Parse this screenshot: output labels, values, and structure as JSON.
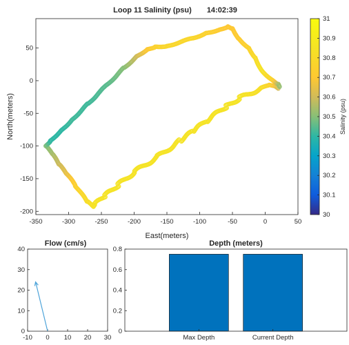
{
  "chart_data": [
    {
      "type": "scatter",
      "title": "Loop 11 Salinity (psu)",
      "time": "14:02:39",
      "xlabel": "East(meters)",
      "ylabel": "North(meters)",
      "xlim": [
        -350,
        50
      ],
      "ylim": [
        -205,
        95
      ],
      "xticks": [
        -350,
        -300,
        -250,
        -200,
        -150,
        -100,
        -50,
        0,
        50
      ],
      "yticks": [
        -200,
        -150,
        -100,
        -50,
        0,
        50
      ],
      "grid": false,
      "colorbar": {
        "label": "Salinity (psu)",
        "colormap": "parula",
        "range": [
          30,
          31
        ],
        "ticks": [
          30,
          30.1,
          30.2,
          30.3,
          30.4,
          30.5,
          30.6,
          30.7,
          30.8,
          30.9,
          31
        ]
      },
      "track": [
        {
          "x": 20,
          "y": -12,
          "salinity": 30.6
        },
        {
          "x": 13,
          "y": -8,
          "salinity": 30.65
        },
        {
          "x": 5,
          "y": -7,
          "salinity": 30.75
        },
        {
          "x": -7,
          "y": -12,
          "salinity": 30.82
        },
        {
          "x": -40,
          "y": -27,
          "salinity": 30.85
        },
        {
          "x": -60,
          "y": -40,
          "salinity": 30.85
        },
        {
          "x": -90,
          "y": -62,
          "salinity": 30.85
        },
        {
          "x": -110,
          "y": -78,
          "salinity": 30.85
        },
        {
          "x": -130,
          "y": -92,
          "salinity": 30.85
        },
        {
          "x": -165,
          "y": -117,
          "salinity": 30.85
        },
        {
          "x": -200,
          "y": -140,
          "salinity": 30.85
        },
        {
          "x": -225,
          "y": -160,
          "salinity": 30.85
        },
        {
          "x": -245,
          "y": -177,
          "salinity": 30.85
        },
        {
          "x": -260,
          "y": -190,
          "salinity": 30.85
        },
        {
          "x": -262,
          "y": -193,
          "salinity": 30.85
        },
        {
          "x": -272,
          "y": -185,
          "salinity": 30.82
        },
        {
          "x": -290,
          "y": -160,
          "salinity": 30.75
        },
        {
          "x": -305,
          "y": -140,
          "salinity": 30.65
        },
        {
          "x": -315,
          "y": -128,
          "salinity": 30.6
        },
        {
          "x": -325,
          "y": -112,
          "salinity": 30.55
        },
        {
          "x": -335,
          "y": -100,
          "salinity": 30.5
        },
        {
          "x": -328,
          "y": -92,
          "salinity": 30.4
        },
        {
          "x": -310,
          "y": -75,
          "salinity": 30.4
        },
        {
          "x": -295,
          "y": -60,
          "salinity": 30.42
        },
        {
          "x": -270,
          "y": -35,
          "salinity": 30.42
        },
        {
          "x": -240,
          "y": -5,
          "salinity": 30.45
        },
        {
          "x": -215,
          "y": 20,
          "salinity": 30.5
        },
        {
          "x": -195,
          "y": 38,
          "salinity": 30.6
        },
        {
          "x": -180,
          "y": 48,
          "salinity": 30.7
        },
        {
          "x": -168,
          "y": 52,
          "salinity": 30.75
        },
        {
          "x": -150,
          "y": 53,
          "salinity": 30.78
        },
        {
          "x": -110,
          "y": 65,
          "salinity": 30.78
        },
        {
          "x": -90,
          "y": 73,
          "salinity": 30.75
        },
        {
          "x": -70,
          "y": 78,
          "salinity": 30.72
        },
        {
          "x": -57,
          "y": 83,
          "salinity": 30.7
        },
        {
          "x": -50,
          "y": 80,
          "salinity": 30.7
        },
        {
          "x": -40,
          "y": 64,
          "salinity": 30.72
        },
        {
          "x": -25,
          "y": 50,
          "salinity": 30.75
        },
        {
          "x": -15,
          "y": 35,
          "salinity": 30.8
        },
        {
          "x": -5,
          "y": 15,
          "salinity": 30.85
        },
        {
          "x": 12,
          "y": 0,
          "salinity": 30.75
        },
        {
          "x": 20,
          "y": -5,
          "salinity": 30.55
        },
        {
          "x": 23,
          "y": -10,
          "salinity": 30.5
        }
      ]
    },
    {
      "type": "quiver",
      "title": "Flow (cm/s)",
      "xlim": [
        -10,
        30
      ],
      "ylim": [
        0,
        40
      ],
      "xticks": [
        -10,
        0,
        10,
        20,
        30
      ],
      "yticks": [
        0,
        10,
        20,
        30,
        40
      ],
      "vector": {
        "x0": 0,
        "y0": 0,
        "u": -6,
        "v": 24
      },
      "color": "#4DA3D9"
    },
    {
      "type": "bar",
      "title": "Depth (meters)",
      "categories": [
        "Max Depth",
        "Current Depth"
      ],
      "values": [
        0.75,
        0.75
      ],
      "xlim": [
        0,
        3
      ],
      "ylim": [
        0,
        0.8
      ],
      "yticks": [
        0,
        0.2,
        0.4,
        0.6,
        0.8
      ],
      "color": "#0072BD"
    }
  ]
}
